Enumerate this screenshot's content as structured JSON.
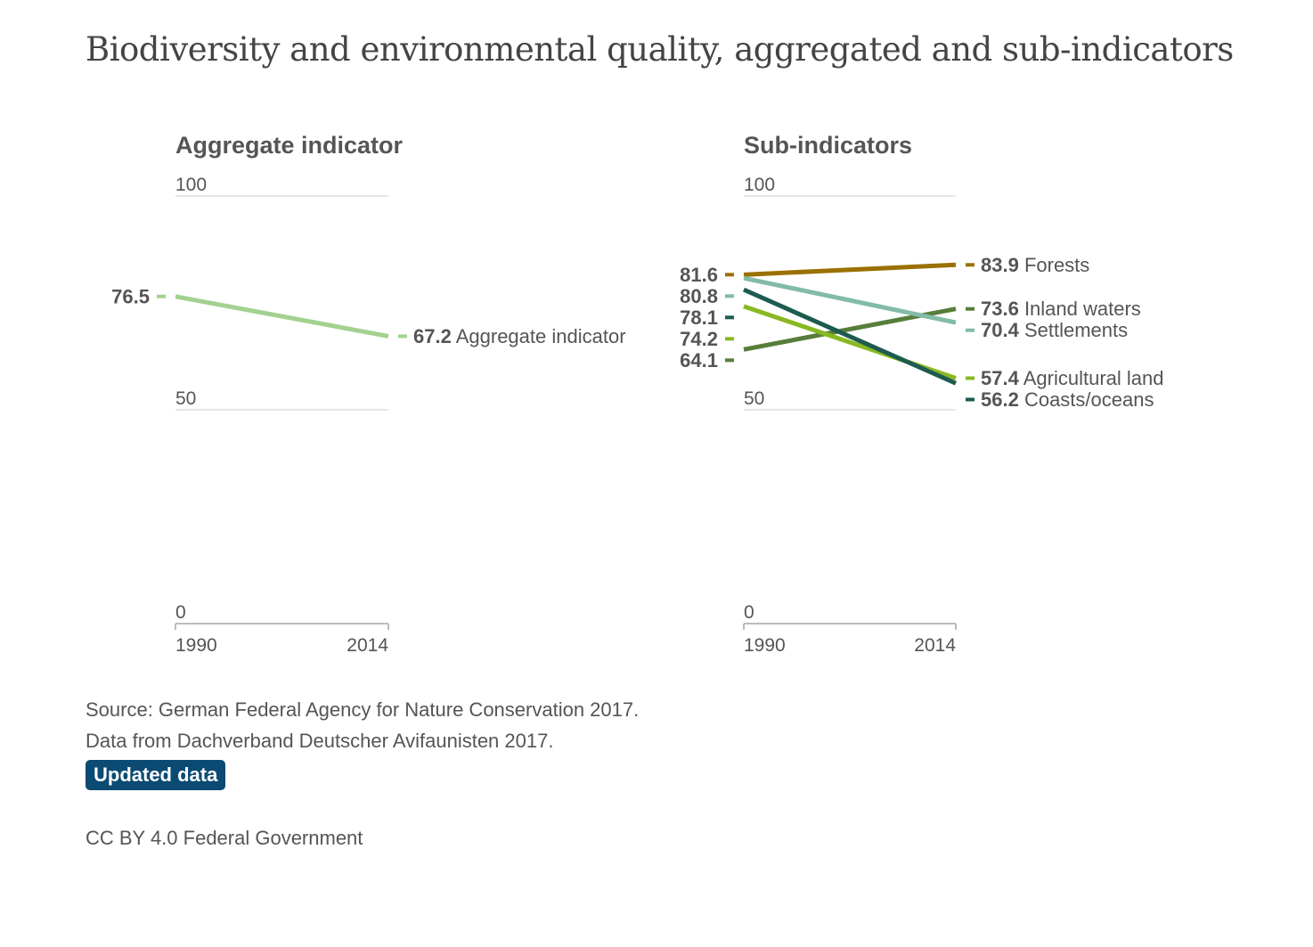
{
  "title": "Biodiversity and environmental quality, aggregated and sub-indicators",
  "chart_data": [
    {
      "type": "line",
      "title": "Aggregate indicator",
      "x": [
        "1990",
        "2014"
      ],
      "yticks": [
        "100",
        "50",
        "0"
      ],
      "ylim": [
        0,
        100
      ],
      "grid": true,
      "series": [
        {
          "name": "Aggregate indicator",
          "values": [
            76.5,
            67.2
          ],
          "labels": [
            "76.5",
            "67.2"
          ],
          "color": "#a3d18f"
        }
      ]
    },
    {
      "type": "line",
      "title": "Sub-indicators",
      "x": [
        "1990",
        "2014"
      ],
      "yticks": [
        "100",
        "50",
        "0"
      ],
      "ylim": [
        0,
        100
      ],
      "grid": true,
      "series": [
        {
          "name": "Forests",
          "values": [
            81.6,
            83.9
          ],
          "labels": [
            "81.6",
            "83.9"
          ],
          "color": "#9b7000"
        },
        {
          "name": "Inland waters",
          "values": [
            64.1,
            73.6
          ],
          "labels": [
            "64.1",
            "73.6"
          ],
          "color": "#567e3a"
        },
        {
          "name": "Settlements",
          "values": [
            80.8,
            70.4
          ],
          "labels": [
            "80.8",
            "70.4"
          ],
          "color": "#82bba6"
        },
        {
          "name": "Agricultural land",
          "values": [
            74.2,
            57.4
          ],
          "labels": [
            "74.2",
            "57.4"
          ],
          "color": "#88b921"
        },
        {
          "name": "Coasts/oceans",
          "values": [
            78.1,
            56.2
          ],
          "labels": [
            "78.1",
            "56.2"
          ],
          "color": "#1d5b50"
        }
      ]
    }
  ],
  "footer": {
    "source": "Source: German Federal Agency for Nature Conservation 2017.",
    "data_from": "Data from Dachverband Deutscher Avifaunisten 2017.",
    "updated_button": "Updated data",
    "license": "CC BY 4.0 Federal Government"
  }
}
